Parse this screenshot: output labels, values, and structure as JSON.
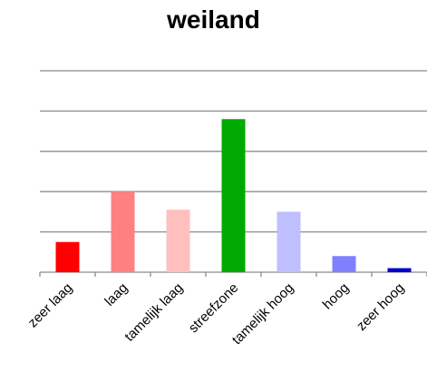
{
  "chart_data": {
    "type": "bar",
    "title": "weiland",
    "xlabel": "",
    "ylabel": "",
    "categories": [
      "zeer laag",
      "laag",
      "tamelijk laag",
      "streefzone",
      "tamelijk hoog",
      "hoog",
      "zeer hoog"
    ],
    "values": [
      0.75,
      2.0,
      1.55,
      3.8,
      1.5,
      0.4,
      0.1
    ],
    "colors": [
      "#ff0000",
      "#ff8080",
      "#ffbfbf",
      "#00aa00",
      "#bfbfff",
      "#8080ff",
      "#0000cc"
    ],
    "ylim": [
      0,
      5
    ],
    "grid": true,
    "gridline_color": "#8c8c8c",
    "legend": "none"
  }
}
